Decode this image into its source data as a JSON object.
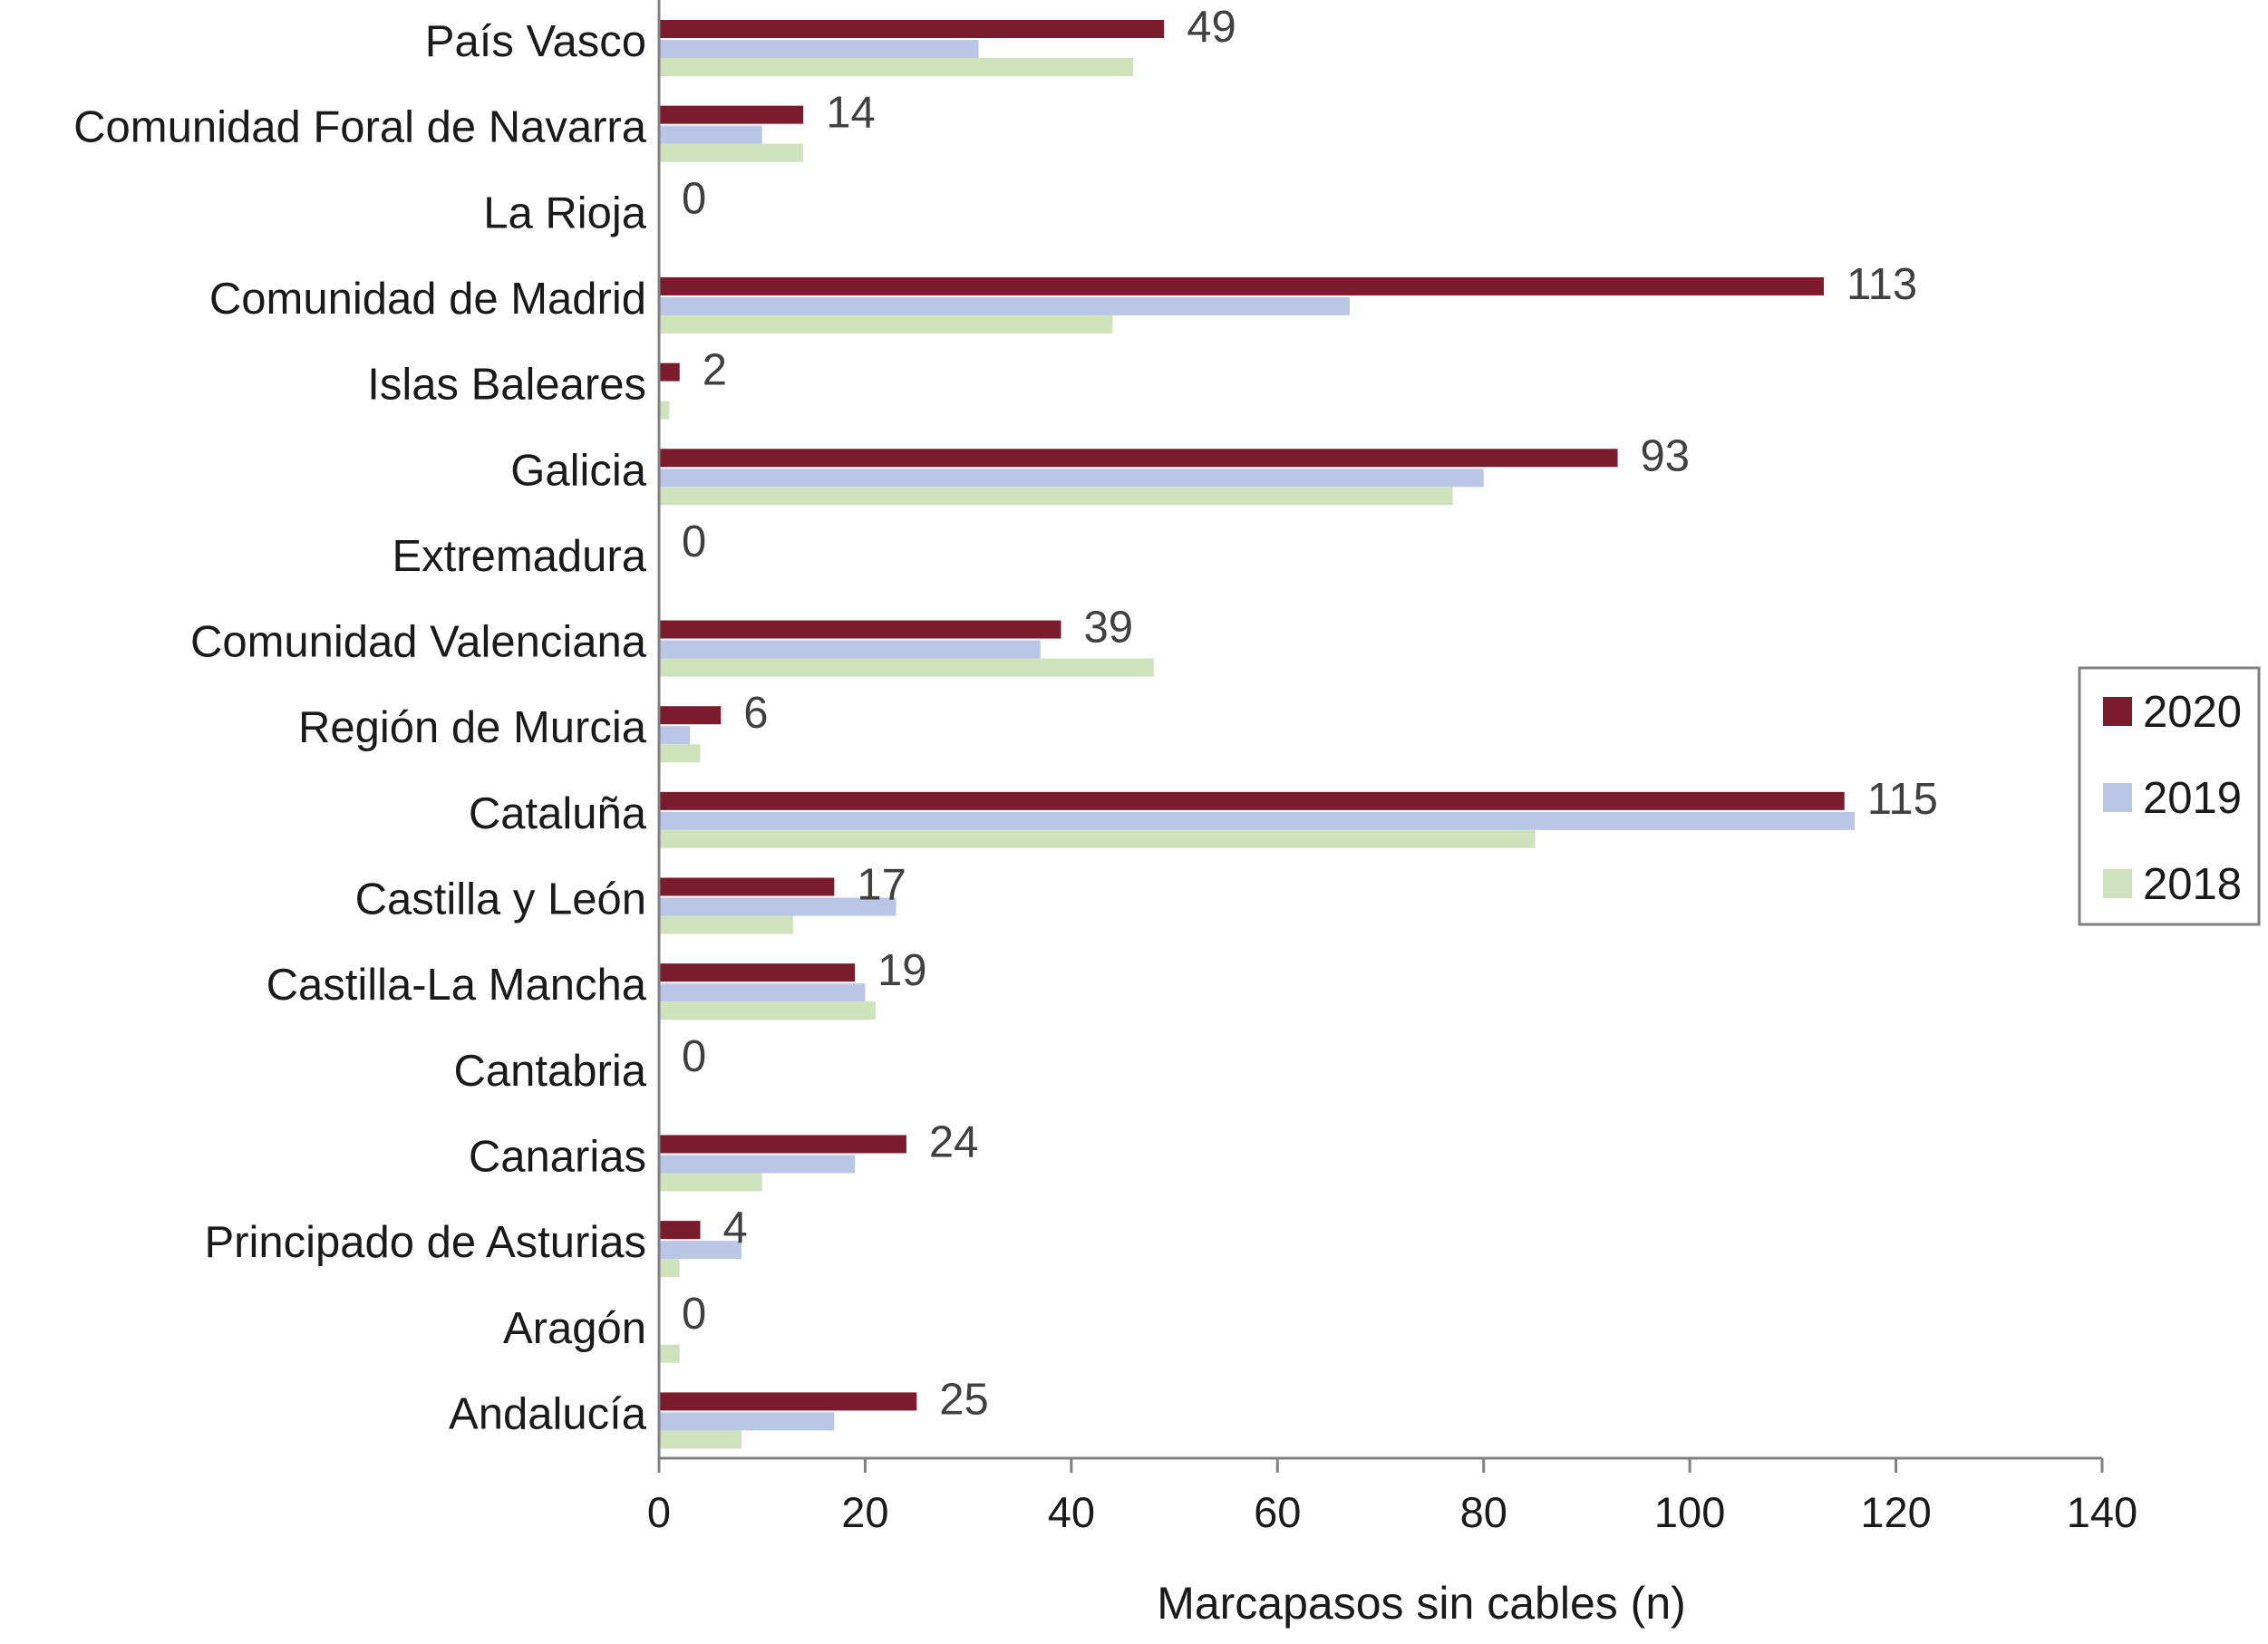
{
  "chart_data": {
    "type": "bar",
    "orientation": "horizontal",
    "title": "",
    "xlabel": "Marcapasos sin cables (n)",
    "ylabel": "",
    "xlim": [
      0,
      140
    ],
    "x_ticks": [
      0,
      20,
      40,
      60,
      80,
      100,
      120,
      140
    ],
    "grid": false,
    "legend_position": "right",
    "categories": [
      "País Vasco",
      "Comunidad Foral de Navarra",
      "La Rioja",
      "Comunidad de Madrid",
      "Islas Baleares",
      "Galicia",
      "Extremadura",
      "Comunidad Valenciana",
      "Región de Murcia",
      "Cataluña",
      "Castilla y León",
      "Castilla-La Mancha",
      "Cantabria",
      "Canarias",
      "Principado de Asturias",
      "Aragón",
      "Andalucía"
    ],
    "series": [
      {
        "name": "2020",
        "color": "#7b1c2e",
        "values": [
          49,
          14,
          0,
          113,
          2,
          93,
          0,
          39,
          6,
          115,
          17,
          19,
          0,
          24,
          4,
          0,
          25
        ],
        "data_labels": [
          "49",
          "14",
          "0",
          "113",
          "2",
          "93",
          "0",
          "39",
          "6",
          "115",
          "17",
          "19",
          "0",
          "24",
          "4",
          "0",
          "25"
        ]
      },
      {
        "name": "2019",
        "color": "#b9c6e6",
        "values": [
          31,
          10,
          0,
          67,
          0,
          80,
          0,
          37,
          3,
          116,
          23,
          20,
          0,
          19,
          8,
          0,
          17
        ]
      },
      {
        "name": "2018",
        "color": "#cfe2be",
        "values": [
          46,
          14,
          0,
          44,
          1,
          77,
          0,
          48,
          4,
          85,
          13,
          21,
          0,
          10,
          2,
          2,
          8
        ]
      }
    ]
  }
}
